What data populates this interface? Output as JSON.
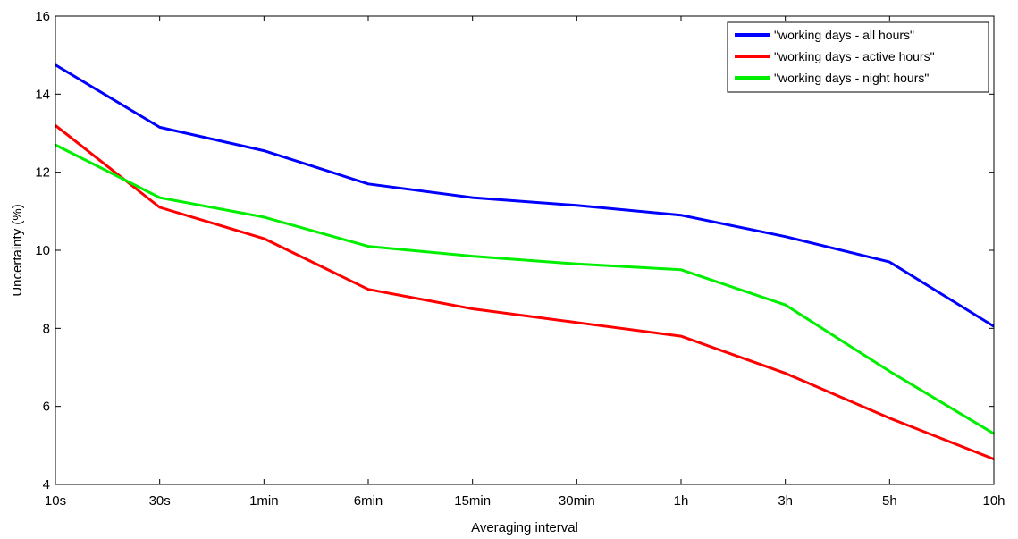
{
  "chart_data": {
    "type": "line",
    "categories": [
      "10s",
      "30s",
      "1min",
      "6min",
      "15min",
      "30min",
      "1h",
      "3h",
      "5h",
      "10h"
    ],
    "xlabel": "Averaging interval",
    "ylabel": "Uncertainty (%)",
    "ylim": [
      4,
      16
    ],
    "yticks": [
      4,
      6,
      8,
      10,
      12,
      14,
      16
    ],
    "grid": false,
    "legend_position": "top-right",
    "series": [
      {
        "name": "\"working days - all hours\"",
        "color": "#0000ff",
        "values": [
          14.75,
          13.15,
          12.55,
          11.7,
          11.35,
          11.15,
          10.9,
          10.35,
          9.7,
          8.05
        ]
      },
      {
        "name": "\"working days - active hours\"",
        "color": "#ff0000",
        "values": [
          13.2,
          11.1,
          10.3,
          9.0,
          8.5,
          8.15,
          7.8,
          6.85,
          5.7,
          4.65
        ]
      },
      {
        "name": "\"working days - night hours\"",
        "color": "#00ee00",
        "values": [
          12.7,
          11.35,
          10.85,
          10.1,
          9.85,
          9.65,
          9.5,
          8.6,
          6.9,
          5.3
        ]
      }
    ]
  }
}
